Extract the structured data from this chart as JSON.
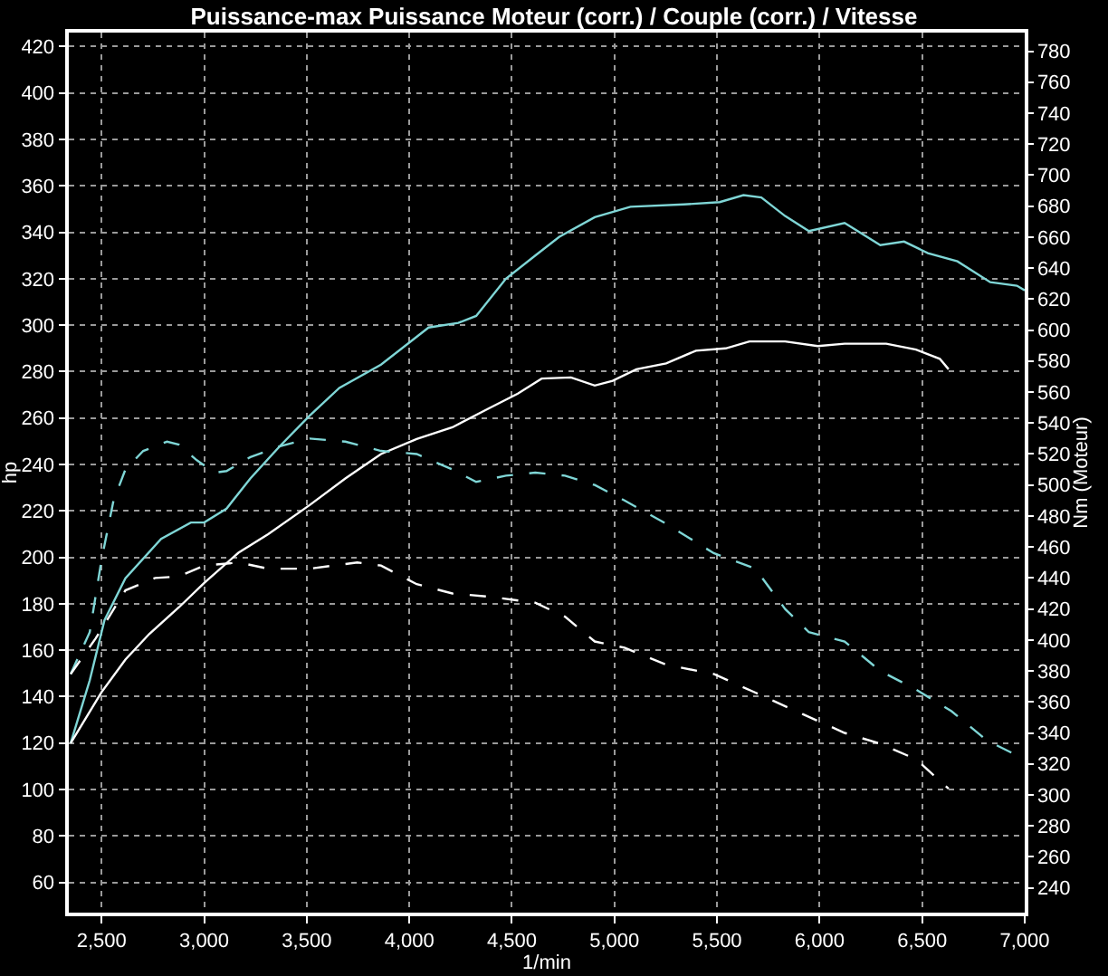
{
  "chart_data": {
    "type": "line",
    "title": "Puissance-max Puissance Moteur (corr.) / Couple (corr.) / Vitesse",
    "xlabel": "1/min",
    "ylabel": "hp",
    "y2label": "Nm (Moteur)",
    "xlim": [
      2340,
      7000
    ],
    "xticks": [
      {
        "value": 2500,
        "label": "2,500"
      },
      {
        "value": 3000,
        "label": "3,000"
      },
      {
        "value": 3500,
        "label": "3,500"
      },
      {
        "value": 4000,
        "label": "4,000"
      },
      {
        "value": 4500,
        "label": "4,500"
      },
      {
        "value": 5000,
        "label": "5,000"
      },
      {
        "value": 5500,
        "label": "5,500"
      },
      {
        "value": 6000,
        "label": "6,000"
      },
      {
        "value": 6500,
        "label": "6,500"
      },
      {
        "value": 7000,
        "label": "7,000"
      }
    ],
    "ylim": [
      47,
      426
    ],
    "yticks": [
      60,
      80,
      100,
      120,
      140,
      160,
      180,
      200,
      220,
      240,
      260,
      280,
      300,
      320,
      340,
      360,
      380,
      400,
      420
    ],
    "y2lim": [
      224,
      792
    ],
    "y2ticks": [
      240,
      260,
      280,
      300,
      320,
      340,
      360,
      380,
      400,
      420,
      440,
      460,
      480,
      500,
      520,
      540,
      560,
      580,
      600,
      620,
      640,
      660,
      680,
      700,
      720,
      740,
      760,
      780
    ],
    "grid": true,
    "series": [
      {
        "color": "#7fd6d6",
        "line_style": "solid",
        "x": [
          2349,
          2442,
          2514,
          2616,
          2790,
          2935,
          3000,
          3109,
          3225,
          3370,
          3514,
          3659,
          3862,
          4036,
          4094,
          4239,
          4326,
          4471,
          4614,
          4730,
          4904,
          5078,
          5339,
          5513,
          5629,
          5716,
          5832,
          5948,
          6122,
          6296,
          6412,
          6528,
          6672,
          6832,
          6962,
          7000
        ],
        "values": [
          120,
          147,
          173,
          191,
          208,
          215,
          215,
          221,
          234,
          248,
          261,
          273,
          283,
          295,
          299,
          301,
          304,
          320,
          330,
          338,
          346.5,
          351,
          352,
          353,
          356,
          355,
          347,
          340.5,
          344,
          334.5,
          336,
          331,
          327.5,
          318.5,
          317,
          315
        ]
      },
      {
        "color": "#ffffff",
        "line_style": "solid",
        "x": [
          2349,
          2500,
          2616,
          2732,
          2877,
          3000,
          3167,
          3312,
          3514,
          3688,
          3862,
          4036,
          4210,
          4384,
          4529,
          4645,
          4788,
          4904,
          4991,
          5107,
          5252,
          5397,
          5542,
          5658,
          5832,
          5991,
          6122,
          6325,
          6470,
          6586,
          6629
        ],
        "values": [
          120,
          142,
          156,
          167,
          178.5,
          189,
          202,
          210,
          222.5,
          234,
          244.5,
          251,
          256,
          264,
          270.5,
          277,
          277.5,
          274,
          276,
          281,
          283.5,
          289,
          290,
          293,
          293,
          291,
          292,
          292,
          289.5,
          285.5,
          281
        ]
      },
      {
        "color": "#7fd6d6",
        "line_style": "dashed",
        "axis": "y2",
        "x": [
          2349,
          2442,
          2500,
          2558,
          2616,
          2703,
          2819,
          2877,
          2964,
          3051,
          3109,
          3225,
          3370,
          3514,
          3688,
          3862,
          4036,
          4210,
          4326,
          4471,
          4614,
          4759,
          4904,
          5049,
          5252,
          5484,
          5687,
          5832,
          5948,
          6122,
          6296,
          6470,
          6643,
          6817,
          7000
        ],
        "values": [
          378,
          405,
          452,
          490,
          510,
          522,
          528,
          526,
          516,
          508,
          509,
          518,
          525,
          530,
          528,
          522,
          520,
          510,
          502,
          506,
          508,
          506,
          500,
          490,
          475,
          456,
          446,
          420,
          405,
          399,
          380,
          368,
          354,
          335,
          323
        ]
      },
      {
        "color": "#ffffff",
        "line_style": "dashed",
        "axis": "y2",
        "x": [
          2349,
          2471,
          2616,
          2761,
          2877,
          3000,
          3167,
          3312,
          3514,
          3746,
          3862,
          4036,
          4210,
          4384,
          4614,
          4759,
          4904,
          5049,
          5252,
          5484,
          5687,
          5919,
          6122,
          6296,
          6470,
          6629
        ],
        "values": [
          378,
          401,
          432,
          440,
          441,
          448,
          450,
          446,
          446,
          450,
          448,
          436,
          430,
          428,
          424,
          415,
          399,
          395,
          384,
          378,
          366,
          352,
          340,
          333,
          323,
          304
        ]
      }
    ]
  }
}
